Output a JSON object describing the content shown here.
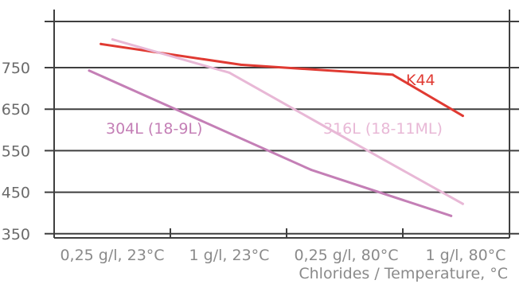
{
  "chart_data": {
    "type": "line",
    "title": "",
    "xlabel": "Chlorides / Temperature, °C",
    "ylabel": "",
    "categories": [
      "0,25 g/l, 23°C",
      "1 g/l, 23°C",
      "0,25 g/l, 80°C",
      "1 g/l, 80°C"
    ],
    "yticks": [
      350,
      450,
      550,
      650,
      750
    ],
    "ylim": [
      340,
      890
    ],
    "grid": true,
    "legend": "inline labels",
    "series": [
      {
        "name": "K44",
        "color": "#e03a32",
        "x": [
          0.4,
          1.6,
          2.9,
          3.5
        ],
        "y": [
          807,
          757,
          733,
          634
        ]
      },
      {
        "name": "316L (18-11ML)",
        "color": "#e8b8d6",
        "x": [
          0.5,
          1.5,
          2.8,
          3.5
        ],
        "y": [
          818,
          738,
          532,
          422
        ]
      },
      {
        "name": "304L (18-9L)",
        "color": "#c47fb6",
        "x": [
          0.3,
          2.2,
          3.4
        ],
        "y": [
          743,
          504,
          393
        ]
      }
    ]
  }
}
